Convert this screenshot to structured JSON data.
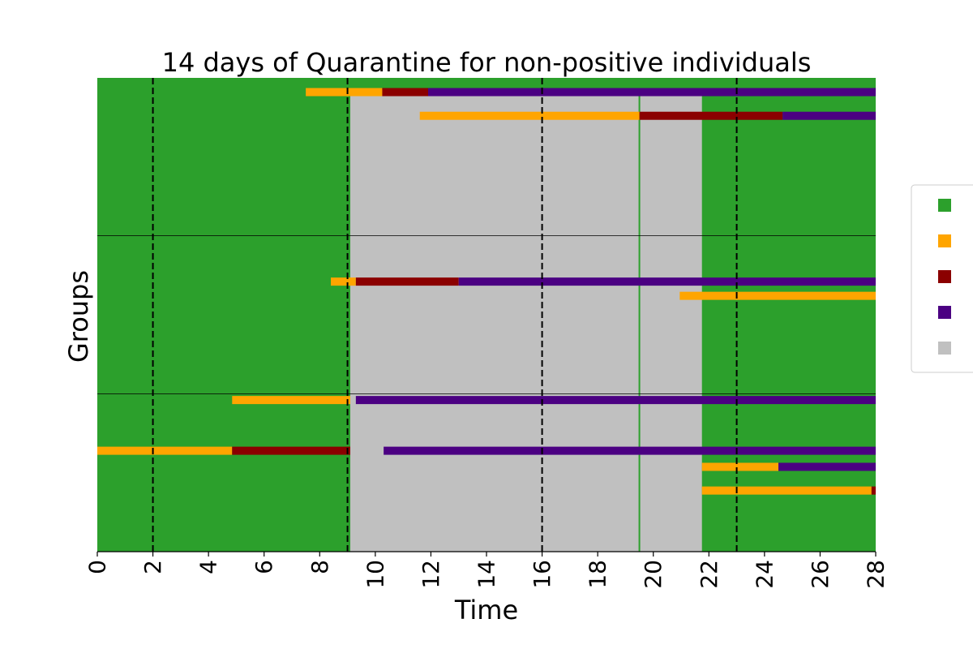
{
  "chart_data": {
    "type": "heatmap",
    "title": "14 days of Quarantine for non-positive individuals",
    "xlabel": "Time",
    "ylabel": "Groups",
    "xlim": [
      0,
      28
    ],
    "xticks": [
      "0",
      "2",
      "4",
      "6",
      "8",
      "10",
      "12",
      "14",
      "16",
      "18",
      "20",
      "22",
      "24",
      "26",
      "28"
    ],
    "ylim": [
      0,
      100
    ],
    "grid": false,
    "legend_position": "right",
    "colors": {
      "susceptible": "#2ca02c",
      "exposed": "#ffa500",
      "infectious": "#8b0000",
      "removed": "#4b0082",
      "quarantine": "#c0c0c0",
      "background": "#2ca02c"
    },
    "legend": [
      {
        "state": "susceptible",
        "color": "#2ca02c",
        "label": ""
      },
      {
        "state": "exposed",
        "color": "#ffa500",
        "label": ""
      },
      {
        "state": "infectious",
        "color": "#8b0000",
        "label": ""
      },
      {
        "state": "removed",
        "color": "#4b0082",
        "label": ""
      },
      {
        "state": "quarantine",
        "color": "#c0c0c0",
        "label": ""
      }
    ],
    "quarantine_blocks": [
      {
        "x0": 9.1,
        "x1": 21.75,
        "y0": 0,
        "y1": 97.5
      }
    ],
    "individual_line": {
      "x": 19.5
    },
    "group_separators_y": [
      33.3,
      66.7
    ],
    "event_lines_x": [
      2,
      9,
      16,
      23
    ],
    "rows": [
      {
        "y": 97,
        "segments": [
          {
            "state": "exposed",
            "x0": 7.5,
            "x1": 10.25
          },
          {
            "state": "infectious",
            "x0": 10.25,
            "x1": 11.9
          },
          {
            "state": "removed",
            "x0": 11.9,
            "x1": 28
          }
        ]
      },
      {
        "y": 92,
        "segments": [
          {
            "state": "exposed",
            "x0": 11.6,
            "x1": 19.5
          },
          {
            "state": "infectious",
            "x0": 19.5,
            "x1": 24.65
          },
          {
            "state": "removed",
            "x0": 24.65,
            "x1": 28
          }
        ]
      },
      {
        "y": 57,
        "segments": [
          {
            "state": "exposed",
            "x0": 8.4,
            "x1": 9.3
          },
          {
            "state": "infectious",
            "x0": 9.3,
            "x1": 13.0
          },
          {
            "state": "removed",
            "x0": 13.0,
            "x1": 28
          }
        ]
      },
      {
        "y": 54,
        "segments": [
          {
            "state": "exposed",
            "x0": 20.95,
            "x1": 28
          }
        ]
      },
      {
        "y": 32,
        "segments": [
          {
            "state": "exposed",
            "x0": 4.85,
            "x1": 9.1
          },
          {
            "state": "removed",
            "x0": 9.3,
            "x1": 28
          }
        ]
      },
      {
        "y": 21.3,
        "segments": [
          {
            "state": "exposed",
            "x0": 0,
            "x1": 4.85
          },
          {
            "state": "infectious",
            "x0": 4.85,
            "x1": 9.1
          },
          {
            "state": "removed",
            "x0": 10.3,
            "x1": 28
          }
        ]
      },
      {
        "y": 17.9,
        "segments": [
          {
            "state": "exposed",
            "x0": 21.75,
            "x1": 24.5
          },
          {
            "state": "removed",
            "x0": 24.5,
            "x1": 28
          }
        ]
      },
      {
        "y": 12.9,
        "segments": [
          {
            "state": "exposed",
            "x0": 21.75,
            "x1": 27.85
          },
          {
            "state": "infectious",
            "x0": 27.85,
            "x1": 28
          }
        ]
      }
    ]
  }
}
